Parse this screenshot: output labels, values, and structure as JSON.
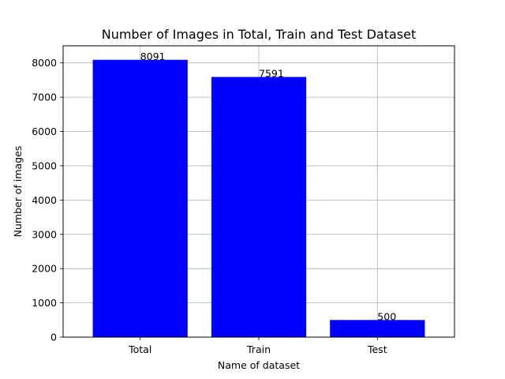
{
  "chart_data": {
    "type": "bar",
    "title": "Number of Images in Total, Train and Test Dataset",
    "xlabel": "Name of dataset",
    "ylabel": "Number of images",
    "categories": [
      "Total",
      "Train",
      "Test"
    ],
    "values": [
      8091,
      7591,
      500
    ],
    "data_labels": [
      "8091",
      "7591",
      "500"
    ],
    "ylim": [
      0,
      8500
    ],
    "yticks": [
      0,
      1000,
      2000,
      3000,
      4000,
      5000,
      6000,
      7000,
      8000
    ],
    "ytick_labels": [
      "0",
      "1000",
      "2000",
      "3000",
      "4000",
      "5000",
      "6000",
      "7000",
      "8000"
    ],
    "bar_color": "#0000ff",
    "grid": true
  }
}
